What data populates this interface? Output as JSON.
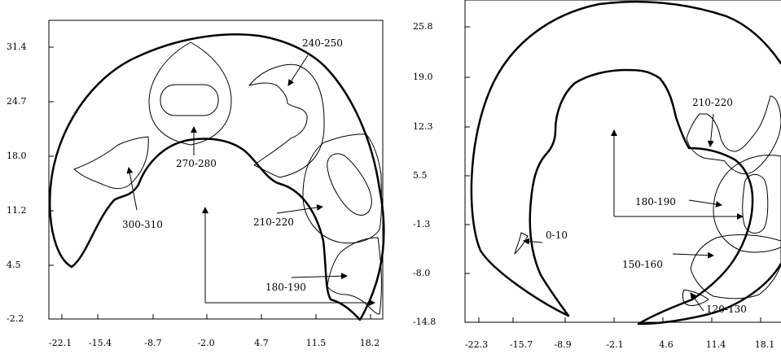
{
  "panels": [
    {
      "y_ticks": [
        "31.4",
        "24.7",
        "18.0",
        "11.2",
        "4.5",
        "-2.2"
      ],
      "x_ticks": [
        "-22.1",
        "-15.4",
        "-8.7",
        "-2.0",
        "4.7",
        "11.5",
        "18.2"
      ],
      "annotations": [
        "240-250",
        "270-280",
        "300-310",
        "210-220",
        "180-190"
      ]
    },
    {
      "y_ticks": [
        "25.8",
        "19.0",
        "12.3",
        "5.5",
        "-1.3",
        "-8.0",
        "-14.8"
      ],
      "x_ticks": [
        "-22.3",
        "-15.7",
        "-8.9",
        "-2.1",
        "4.6",
        "11.4",
        "18.1"
      ],
      "annotations": [
        "210-220",
        "180-190",
        "0-10",
        "150-160",
        "120-130"
      ]
    }
  ]
}
